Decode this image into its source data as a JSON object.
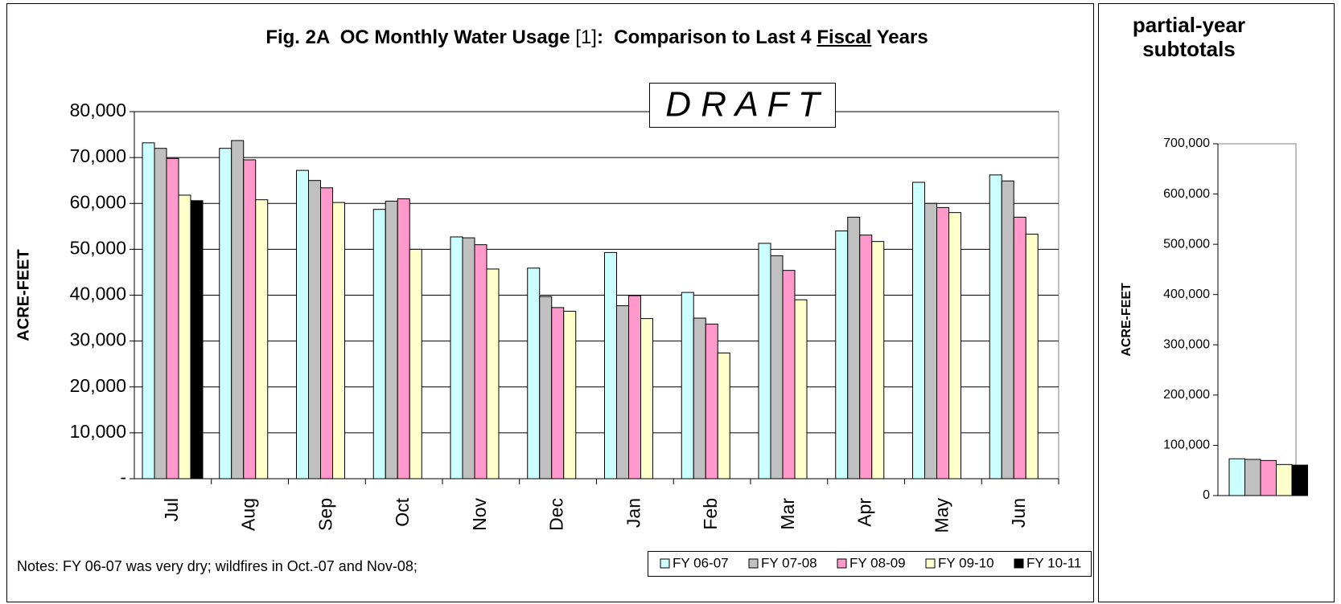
{
  "chart_data": [
    {
      "type": "bar",
      "title": [
        "Fig. 2A  OC Monthly Water Usage ",
        "[1]",
        ":  Comparison to Last 4 ",
        "Fiscal",
        " Years"
      ],
      "annotation": "D R A F T",
      "ylabel": "ACRE-FEET",
      "notes": "Notes:   FY 06-07 was very dry;  wildfires in Oct.-07 and Nov-08;",
      "categories": [
        "Jul",
        "Aug",
        "Sep",
        "Oct",
        "Nov",
        "Dec",
        "Jan",
        "Feb",
        "Mar",
        "Apr",
        "May",
        "Jun"
      ],
      "series": [
        {
          "name": "FY 06-07",
          "color": "#ccffff",
          "values": [
            73200,
            72000,
            67200,
            58700,
            52700,
            45900,
            49300,
            40600,
            51300,
            54000,
            64600,
            66200
          ]
        },
        {
          "name": "FY 07-08",
          "color": "#c0c0c0",
          "values": [
            72000,
            73700,
            65000,
            60500,
            52500,
            39700,
            37700,
            35000,
            48600,
            57000,
            60000,
            64900
          ]
        },
        {
          "name": "FY 08-09",
          "color": "#ff99cc",
          "values": [
            69800,
            69500,
            63400,
            61000,
            51000,
            37300,
            39900,
            33700,
            45400,
            53100,
            59100,
            57000
          ]
        },
        {
          "name": "FY 09-10",
          "color": "#ffffcc",
          "values": [
            61800,
            60800,
            60200,
            50000,
            45700,
            36500,
            34900,
            27400,
            39000,
            51700,
            58000,
            53300
          ]
        },
        {
          "name": "FY 10-11",
          "color": "#000000",
          "values": [
            60600,
            null,
            null,
            null,
            null,
            null,
            null,
            null,
            null,
            null,
            null,
            null
          ]
        }
      ],
      "ylim": [
        0,
        80000
      ],
      "yticks": [
        {
          "value": 0,
          "label": "-"
        },
        {
          "value": 10000,
          "label": "10,000"
        },
        {
          "value": 20000,
          "label": "20,000"
        },
        {
          "value": 30000,
          "label": "30,000"
        },
        {
          "value": 40000,
          "label": "40,000"
        },
        {
          "value": 50000,
          "label": "50,000"
        },
        {
          "value": 60000,
          "label": "60,000"
        },
        {
          "value": 70000,
          "label": "70,000"
        },
        {
          "value": 80000,
          "label": "80,000"
        }
      ],
      "grid": true,
      "legend": "bottom-right"
    },
    {
      "type": "bar",
      "title": "partial-year subtotals",
      "ylabel": "ACRE-FEET",
      "series": [
        {
          "color": "#ccffff",
          "values": [
            73200
          ]
        },
        {
          "color": "#c0c0c0",
          "values": [
            72000
          ]
        },
        {
          "color": "#ff99cc",
          "values": [
            69800
          ]
        },
        {
          "color": "#ffffcc",
          "values": [
            61800
          ]
        },
        {
          "color": "#000000",
          "values": [
            60600
          ]
        }
      ],
      "ylim": [
        0,
        700000
      ],
      "yticks": [
        0,
        {
          "value": 100000,
          "label": "100,000"
        },
        {
          "value": 200000,
          "label": "200,000"
        },
        {
          "value": 300000,
          "label": "300,000"
        },
        {
          "value": 400000,
          "label": "400,000"
        },
        {
          "value": 500000,
          "label": "500,000"
        },
        {
          "value": 600000,
          "label": "600,000"
        },
        {
          "value": 700000,
          "label": "700,000"
        }
      ],
      "grid": false
    }
  ]
}
